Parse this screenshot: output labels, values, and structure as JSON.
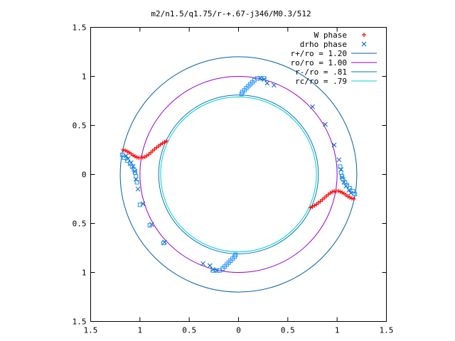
{
  "chart_data": {
    "type": "scatter",
    "title": "m2/n1.5/q1.75/r-+.67-j346/M0.3/512",
    "xlabel": "",
    "ylabel": "",
    "xlim": [
      -1.5,
      1.5
    ],
    "ylim": [
      -1.5,
      1.5
    ],
    "grid": false,
    "legend_position": "top-right",
    "x_ticks": [
      {
        "value": -1.5,
        "label": "1.5"
      },
      {
        "value": -1.0,
        "label": "1"
      },
      {
        "value": -0.5,
        "label": "0.5"
      },
      {
        "value": 0.0,
        "label": "0"
      },
      {
        "value": 0.5,
        "label": "0.5"
      },
      {
        "value": 1.0,
        "label": "1"
      },
      {
        "value": 1.5,
        "label": "1.5"
      }
    ],
    "y_ticks": [
      {
        "value": 1.5,
        "label": "1.5"
      },
      {
        "value": 1.0,
        "label": "1"
      },
      {
        "value": 0.5,
        "label": "0.5"
      },
      {
        "value": 0.0,
        "label": "0"
      },
      {
        "value": -0.5,
        "label": "0.5"
      },
      {
        "value": -1.0,
        "label": "1"
      },
      {
        "value": -1.5,
        "label": "1.5"
      }
    ],
    "circles": [
      {
        "name": "r+/ro = 1.20",
        "radius": 1.2,
        "color": "#0060ad"
      },
      {
        "name": "ro/ro = 1.00",
        "radius": 1.0,
        "color": "#9400d3"
      },
      {
        "name": "r-/ro = .81",
        "radius": 0.81,
        "color": "#0a70b8"
      },
      {
        "name": "rc/ro = .79",
        "radius": 0.79,
        "color": "#00d0d0"
      }
    ],
    "series": [
      {
        "name": "W phase",
        "marker": "plus",
        "color": "#ff0000",
        "points": [
          [
            -1.17,
            0.25
          ],
          [
            -1.15,
            0.245
          ],
          [
            -1.13,
            0.235
          ],
          [
            -1.11,
            0.225
          ],
          [
            -1.09,
            0.21
          ],
          [
            -1.07,
            0.195
          ],
          [
            -1.05,
            0.185
          ],
          [
            -1.03,
            0.175
          ],
          [
            -1.01,
            0.17
          ],
          [
            -0.99,
            0.17
          ],
          [
            -0.97,
            0.172
          ],
          [
            -0.95,
            0.178
          ],
          [
            -0.93,
            0.19
          ],
          [
            -0.91,
            0.205
          ],
          [
            -0.89,
            0.222
          ],
          [
            -0.87,
            0.24
          ],
          [
            -0.85,
            0.258
          ],
          [
            -0.83,
            0.275
          ],
          [
            -0.81,
            0.29
          ],
          [
            -0.79,
            0.305
          ],
          [
            -0.77,
            0.318
          ],
          [
            -0.75,
            0.33
          ],
          [
            -0.73,
            0.34
          ],
          [
            1.17,
            -0.25
          ],
          [
            1.15,
            -0.245
          ],
          [
            1.13,
            -0.235
          ],
          [
            1.11,
            -0.225
          ],
          [
            1.09,
            -0.21
          ],
          [
            1.07,
            -0.195
          ],
          [
            1.05,
            -0.185
          ],
          [
            1.03,
            -0.175
          ],
          [
            1.01,
            -0.17
          ],
          [
            0.99,
            -0.17
          ],
          [
            0.97,
            -0.172
          ],
          [
            0.95,
            -0.178
          ],
          [
            0.93,
            -0.19
          ],
          [
            0.91,
            -0.205
          ],
          [
            0.89,
            -0.222
          ],
          [
            0.87,
            -0.24
          ],
          [
            0.85,
            -0.258
          ],
          [
            0.83,
            -0.275
          ],
          [
            0.81,
            -0.29
          ],
          [
            0.79,
            -0.305
          ],
          [
            0.77,
            -0.318
          ],
          [
            0.75,
            -0.33
          ],
          [
            0.73,
            -0.34
          ]
        ]
      },
      {
        "name": "drho phase",
        "marker": "cross",
        "color": "#0060ad",
        "points": [
          [
            0.75,
            0.69
          ],
          [
            0.88,
            0.51
          ],
          [
            0.97,
            0.3
          ],
          [
            1.02,
            0.15
          ],
          [
            1.04,
            0.05
          ],
          [
            1.05,
            -0.03
          ],
          [
            1.07,
            -0.08
          ],
          [
            1.09,
            -0.12
          ],
          [
            1.12,
            -0.16
          ],
          [
            1.14,
            -0.19
          ],
          [
            -0.75,
            -0.69
          ],
          [
            -0.88,
            -0.51
          ],
          [
            -0.97,
            -0.3
          ],
          [
            -1.02,
            -0.15
          ],
          [
            -1.04,
            -0.05
          ],
          [
            -1.05,
            0.03
          ],
          [
            -1.07,
            0.08
          ],
          [
            -1.09,
            0.12
          ],
          [
            -1.12,
            0.16
          ],
          [
            -1.14,
            0.19
          ],
          [
            0.29,
            0.93
          ],
          [
            0.36,
            0.91
          ],
          [
            0.26,
            0.97
          ],
          [
            0.22,
            0.98
          ],
          [
            -0.29,
            -0.93
          ],
          [
            -0.36,
            -0.91
          ],
          [
            -0.26,
            -0.97
          ],
          [
            -0.22,
            -0.98
          ]
        ]
      },
      {
        "name": "",
        "marker": "square",
        "color": "#1e90ff",
        "points": [
          [
            -1.18,
            0.2
          ],
          [
            -1.16,
            0.17
          ],
          [
            -1.13,
            0.14
          ],
          [
            -1.1,
            0.11
          ],
          [
            -1.08,
            0.08
          ],
          [
            -1.06,
            0.05
          ],
          [
            -1.05,
            0.02
          ],
          [
            -1.04,
            -0.02
          ],
          [
            -1.03,
            -0.08
          ],
          [
            -1.0,
            -0.31
          ],
          [
            -0.9,
            -0.52
          ],
          [
            -0.76,
            -0.7
          ],
          [
            1.18,
            -0.2
          ],
          [
            1.16,
            -0.17
          ],
          [
            1.13,
            -0.14
          ],
          [
            1.1,
            -0.11
          ],
          [
            1.08,
            -0.08
          ],
          [
            1.06,
            -0.05
          ],
          [
            1.05,
            -0.02
          ],
          [
            1.04,
            0.02
          ],
          [
            1.03,
            0.08
          ],
          [
            0.03,
            0.82
          ],
          [
            0.04,
            0.84
          ],
          [
            0.06,
            0.86
          ],
          [
            0.08,
            0.88
          ],
          [
            0.1,
            0.9
          ],
          [
            0.12,
            0.92
          ],
          [
            0.14,
            0.94
          ],
          [
            0.16,
            0.96
          ],
          [
            0.19,
            0.98
          ],
          [
            0.23,
            0.98
          ],
          [
            0.26,
            0.98
          ],
          [
            -0.03,
            -0.82
          ],
          [
            -0.04,
            -0.84
          ],
          [
            -0.06,
            -0.86
          ],
          [
            -0.08,
            -0.88
          ],
          [
            -0.1,
            -0.9
          ],
          [
            -0.12,
            -0.92
          ],
          [
            -0.14,
            -0.94
          ],
          [
            -0.16,
            -0.96
          ],
          [
            -0.19,
            -0.98
          ],
          [
            -0.23,
            -0.98
          ],
          [
            -0.26,
            -0.98
          ]
        ]
      }
    ]
  }
}
